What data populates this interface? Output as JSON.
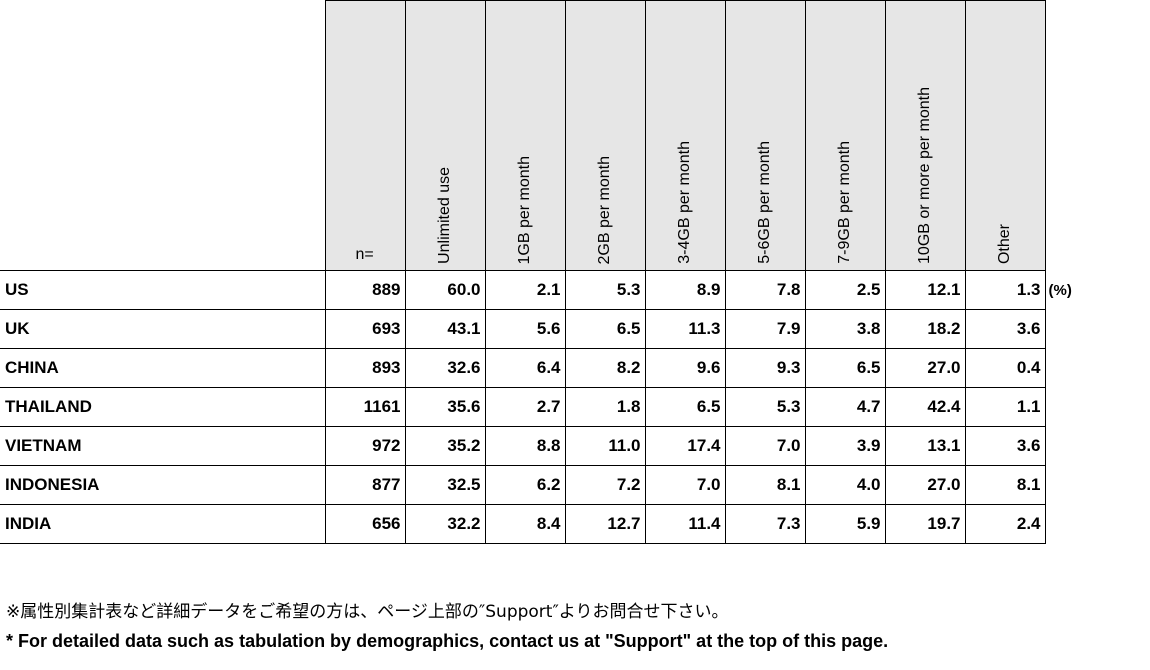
{
  "table": {
    "n_header": "n=",
    "columns": [
      "Unlimited use",
      "1GB per month",
      "2GB per month",
      "3-4GB per month",
      "5-6GB per month",
      "7-9GB per month",
      "10GB or more per month",
      "Other"
    ],
    "unit": "(%)",
    "rows": [
      {
        "country": "US",
        "n": "889",
        "values": [
          "60.0",
          "2.1",
          "5.3",
          "8.9",
          "7.8",
          "2.5",
          "12.1",
          "1.3"
        ]
      },
      {
        "country": "UK",
        "n": "693",
        "values": [
          "43.1",
          "5.6",
          "6.5",
          "11.3",
          "7.9",
          "3.8",
          "18.2",
          "3.6"
        ]
      },
      {
        "country": "CHINA",
        "n": "893",
        "values": [
          "32.6",
          "6.4",
          "8.2",
          "9.6",
          "9.3",
          "6.5",
          "27.0",
          "0.4"
        ]
      },
      {
        "country": "THAILAND",
        "n": "1161",
        "values": [
          "35.6",
          "2.7",
          "1.8",
          "6.5",
          "5.3",
          "4.7",
          "42.4",
          "1.1"
        ]
      },
      {
        "country": "VIETNAM",
        "n": "972",
        "values": [
          "35.2",
          "8.8",
          "11.0",
          "17.4",
          "7.0",
          "3.9",
          "13.1",
          "3.6"
        ]
      },
      {
        "country": "INDONESIA",
        "n": "877",
        "values": [
          "32.5",
          "6.2",
          "7.2",
          "7.0",
          "8.1",
          "4.0",
          "27.0",
          "8.1"
        ]
      },
      {
        "country": "INDIA",
        "n": "656",
        "values": [
          "32.2",
          "8.4",
          "12.7",
          "11.4",
          "7.3",
          "5.9",
          "19.7",
          "2.4"
        ]
      }
    ]
  },
  "notes": {
    "japanese": "※属性別集計表など詳細データをご希望の方は、ページ上部の″Support″よりお問合せ下さい。",
    "english": "* For detailed data such as tabulation by demographics, contact us at \"Support\" at the top of this page."
  }
}
